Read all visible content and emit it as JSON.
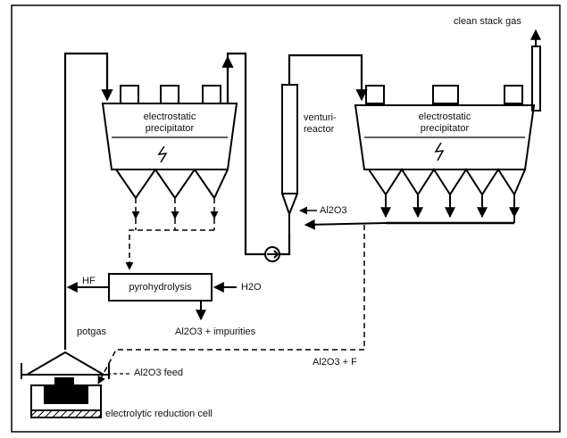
{
  "labels": {
    "clean_stack_gas": "clean stack gas",
    "esp_left_1": "electrostatic",
    "esp_left_2": "precipitator",
    "esp_right_1": "electrostatic",
    "esp_right_2": "precipitator",
    "venturi_1": "venturi-",
    "venturi_2": "reactor",
    "al2o3_venturi": "Al2O3",
    "pyrohydrolysis": "pyrohydrolysis",
    "hf": "HF",
    "h2o": "H2O",
    "al2o3_impurities": "Al2O3 + impurities",
    "potgas": "potgas",
    "al2o3_feed": "Al2O3 feed",
    "al2o3_f": "Al2O3 + F",
    "electrolytic_cell": "electrolytic reduction cell"
  },
  "icons": [
    "lightning-bolt-icon",
    "fan-icon",
    "arrow-icon"
  ]
}
